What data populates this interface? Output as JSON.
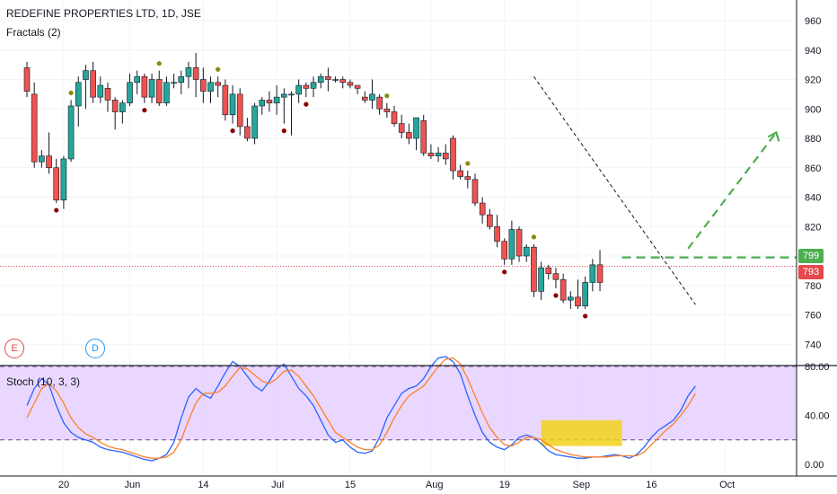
{
  "header": {
    "title": "REDEFINE PROPERTIES LTD, 1D, JSE",
    "indicator_label": "Fractals (2)",
    "stoch_label": "Stoch (10, 3, 3)"
  },
  "event_badges": [
    {
      "letter": "E",
      "color": "#e5484d"
    },
    {
      "letter": "D",
      "color": "#2196f3"
    }
  ],
  "price_tags": {
    "upper": {
      "value": "799",
      "color": "#4caf50"
    },
    "current": {
      "value": "793",
      "color": "#e5484d"
    }
  },
  "colors": {
    "up": "#26a69a",
    "down": "#ef5350",
    "fractal_up": "#8a8a0a",
    "fractal_down": "#8b0000",
    "stoch_k": "#2962ff",
    "stoch_d": "#ff7f27",
    "stoch_band": "#e1c9ff",
    "highlight": "#f2d21b",
    "projection": "#4caf50"
  },
  "chart_data": [
    {
      "type": "candlestick",
      "title": "REDEFINE PROPERTIES LTD, 1D, JSE",
      "price_axis_ticks": [
        960,
        940,
        920,
        900,
        880,
        860,
        840,
        820,
        800,
        780,
        760,
        740
      ],
      "ylim": [
        726,
        968
      ],
      "time_axis_ticks": [
        {
          "label": "20",
          "index": 5
        },
        {
          "label": "Jun",
          "index": 14
        },
        {
          "label": "14",
          "index": 24
        },
        {
          "label": "Jul",
          "index": 34
        },
        {
          "label": "15",
          "index": 44
        },
        {
          "label": "Aug",
          "index": 55
        },
        {
          "label": "19",
          "index": 65
        },
        {
          "label": "Sep",
          "index": 75
        },
        {
          "label": "16",
          "index": 85
        },
        {
          "label": "Oct",
          "index": 95
        }
      ],
      "candles": [
        [
          928,
          932,
          908,
          912
        ],
        [
          910,
          918,
          860,
          864
        ],
        [
          864,
          872,
          860,
          868
        ],
        [
          868,
          884,
          856,
          860
        ],
        [
          860,
          866,
          836,
          838
        ],
        [
          838,
          868,
          832,
          866
        ],
        [
          866,
          906,
          864,
          902
        ],
        [
          902,
          922,
          888,
          918
        ],
        [
          920,
          930,
          900,
          926
        ],
        [
          926,
          932,
          904,
          908
        ],
        [
          908,
          922,
          904,
          916
        ],
        [
          914,
          918,
          898,
          906
        ],
        [
          906,
          908,
          886,
          898
        ],
        [
          898,
          906,
          890,
          904
        ],
        [
          904,
          924,
          902,
          918
        ],
        [
          918,
          926,
          910,
          922
        ],
        [
          922,
          924,
          904,
          908
        ],
        [
          908,
          924,
          904,
          920
        ],
        [
          920,
          926,
          902,
          904
        ],
        [
          904,
          922,
          902,
          918
        ],
        [
          918,
          924,
          914,
          918
        ],
        [
          918,
          926,
          910,
          922
        ],
        [
          922,
          932,
          914,
          928
        ],
        [
          928,
          938,
          908,
          920
        ],
        [
          920,
          928,
          904,
          912
        ],
        [
          912,
          922,
          904,
          918
        ],
        [
          918,
          922,
          908,
          916
        ],
        [
          916,
          920,
          892,
          896
        ],
        [
          896,
          916,
          890,
          910
        ],
        [
          910,
          914,
          882,
          888
        ],
        [
          888,
          894,
          878,
          880
        ],
        [
          880,
          904,
          876,
          902
        ],
        [
          902,
          908,
          896,
          906
        ],
        [
          906,
          912,
          898,
          904
        ],
        [
          904,
          916,
          896,
          908
        ],
        [
          908,
          914,
          890,
          910
        ],
        [
          910,
          912,
          882,
          910
        ],
        [
          910,
          920,
          904,
          916
        ],
        [
          916,
          918,
          908,
          914
        ],
        [
          914,
          922,
          908,
          918
        ],
        [
          918,
          924,
          914,
          922
        ],
        [
          922,
          928,
          912,
          920
        ],
        [
          920,
          922,
          918,
          920
        ],
        [
          920,
          922,
          914,
          918
        ],
        [
          918,
          920,
          914,
          916
        ],
        [
          916,
          914,
          910,
          914
        ],
        [
          908,
          912,
          904,
          906
        ],
        [
          906,
          920,
          900,
          910
        ],
        [
          908,
          910,
          896,
          900
        ],
        [
          900,
          904,
          894,
          898
        ],
        [
          898,
          902,
          888,
          890
        ],
        [
          890,
          896,
          880,
          884
        ],
        [
          884,
          890,
          876,
          880
        ],
        [
          880,
          894,
          872,
          894
        ],
        [
          892,
          896,
          868,
          870
        ],
        [
          870,
          876,
          866,
          868
        ],
        [
          868,
          874,
          864,
          870
        ],
        [
          870,
          876,
          862,
          866
        ],
        [
          880,
          882,
          852,
          858
        ],
        [
          858,
          862,
          852,
          854
        ],
        [
          854,
          858,
          846,
          852
        ],
        [
          852,
          856,
          834,
          836
        ],
        [
          836,
          840,
          822,
          828
        ],
        [
          828,
          832,
          818,
          820
        ],
        [
          820,
          828,
          806,
          810
        ],
        [
          810,
          812,
          794,
          798
        ],
        [
          798,
          824,
          794,
          818
        ],
        [
          818,
          820,
          796,
          800
        ],
        [
          800,
          808,
          796,
          806
        ],
        [
          806,
          808,
          772,
          776
        ],
        [
          776,
          796,
          770,
          792
        ],
        [
          792,
          794,
          784,
          788
        ],
        [
          788,
          792,
          778,
          784
        ],
        [
          784,
          788,
          768,
          770
        ],
        [
          770,
          776,
          764,
          772
        ],
        [
          772,
          784,
          764,
          766
        ],
        [
          766,
          786,
          764,
          782
        ],
        [
          782,
          798,
          776,
          794
        ],
        [
          794,
          804,
          776,
          782
        ]
      ],
      "fractals_up_indices": [
        6,
        18,
        26,
        49,
        60,
        69,
        79
      ],
      "fractals_down_indices": [
        4,
        16,
        28,
        35,
        38,
        65,
        72,
        76
      ],
      "trendline": {
        "from": [
          69,
          922
        ],
        "to": [
          91,
          767
        ]
      },
      "horizontal_levels": [
        {
          "price": 799,
          "style": "dashed",
          "color": "#4caf50",
          "from_index": 81
        },
        {
          "price": 793,
          "style": "dotted",
          "color": "#e5484d"
        }
      ],
      "projection_arrow": {
        "from": [
          90,
          805
        ],
        "to": [
          102,
          884
        ],
        "color": "#4caf50",
        "style": "dashed"
      }
    },
    {
      "type": "line",
      "title": "Stoch (10, 3, 3)",
      "y_axis_ticks": [
        "80.00",
        "40.00",
        "0.00"
      ],
      "ylim": [
        -5,
        95
      ],
      "bands": [
        80,
        20
      ],
      "series": [
        {
          "name": "%K",
          "color": "#2962ff",
          "values": [
            48,
            62,
            70,
            65,
            48,
            34,
            26,
            22,
            20,
            18,
            14,
            12,
            11,
            10,
            8,
            6,
            4,
            3,
            5,
            8,
            18,
            38,
            55,
            62,
            57,
            54,
            64,
            75,
            84,
            80,
            72,
            64,
            60,
            68,
            78,
            82,
            72,
            62,
            56,
            48,
            36,
            24,
            18,
            20,
            14,
            10,
            9,
            11,
            22,
            38,
            48,
            58,
            62,
            64,
            70,
            80,
            87,
            88,
            84,
            74,
            56,
            40,
            26,
            18,
            14,
            12,
            16,
            22,
            24,
            22,
            17,
            11,
            8,
            7,
            6,
            5,
            5,
            6,
            6,
            7,
            8,
            7,
            5,
            8,
            14,
            22,
            28,
            32,
            36,
            44,
            56,
            64
          ]
        },
        {
          "name": "%D",
          "color": "#ff7f27",
          "values": [
            38,
            50,
            62,
            66,
            60,
            50,
            38,
            30,
            25,
            22,
            18,
            15,
            13,
            12,
            10,
            8,
            6,
            5,
            5,
            6,
            10,
            20,
            36,
            50,
            58,
            58,
            59,
            64,
            72,
            79,
            78,
            73,
            68,
            66,
            70,
            76,
            77,
            72,
            64,
            56,
            46,
            36,
            26,
            22,
            18,
            14,
            12,
            12,
            16,
            26,
            38,
            48,
            56,
            60,
            64,
            72,
            80,
            86,
            87,
            82,
            70,
            56,
            42,
            30,
            22,
            16,
            15,
            18,
            22,
            22,
            20,
            16,
            12,
            10,
            8,
            7,
            6,
            6,
            6,
            6,
            7,
            7,
            7,
            7,
            10,
            16,
            22,
            28,
            33,
            40,
            48,
            58
          ]
        }
      ],
      "highlight_box": {
        "x_from_index": 70,
        "x_to_index": 81,
        "y_from": 15,
        "y_to": 36,
        "color": "#f2d21b"
      }
    }
  ]
}
